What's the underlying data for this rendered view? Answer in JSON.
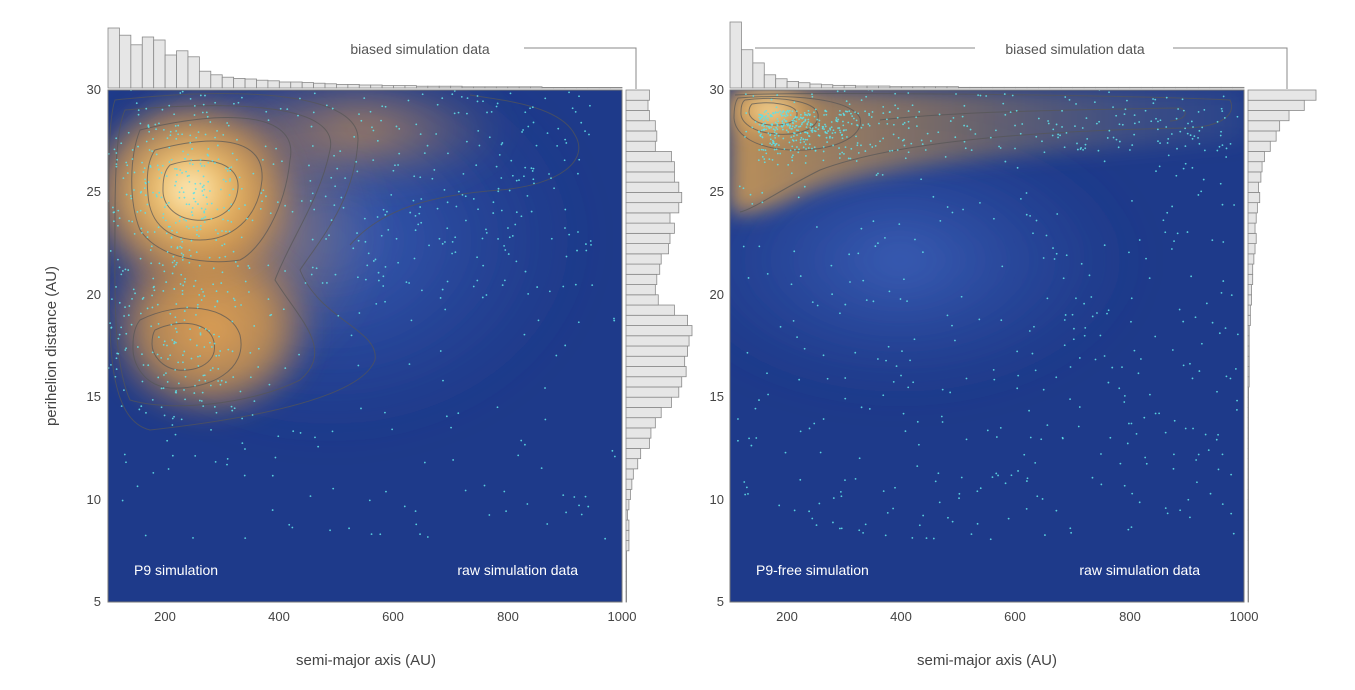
{
  "chart_data": [
    {
      "type": "heatmap",
      "panel": "left",
      "series_label": "P9 simulation",
      "data_label": "raw simulation data",
      "marginal_label": "biased simulation data",
      "xlabel": "semi-major axis (AU)",
      "ylabel": "perihelion distance (AU)",
      "xlim": [
        100,
        1000
      ],
      "ylim": [
        5,
        30
      ],
      "xticks": [
        200,
        400,
        600,
        800,
        1000
      ],
      "yticks": [
        5,
        10,
        15,
        20,
        25,
        30
      ],
      "density_peaks": [
        {
          "a": 230,
          "q": 25,
          "weight": 1.0
        },
        {
          "a": 200,
          "q": 17.5,
          "weight": 0.7
        }
      ],
      "top_histogram": {
        "bin_start": 100,
        "bin_width": 20,
        "counts": [
          100,
          88,
          72,
          85,
          80,
          55,
          62,
          52,
          28,
          22,
          18,
          16,
          15,
          13,
          12,
          10,
          10,
          9,
          8,
          7,
          6,
          6,
          5,
          5,
          4,
          4,
          4,
          3,
          3,
          3,
          3,
          2,
          2,
          2,
          2,
          2,
          2,
          2,
          1,
          1,
          1,
          1,
          1,
          1,
          1
        ]
      },
      "right_histogram": {
        "bin_start": 5,
        "bin_width": 0.5,
        "counts": [
          0,
          0,
          0,
          0,
          0,
          2,
          2,
          2,
          1,
          2,
          3,
          4,
          5,
          8,
          10,
          16,
          17,
          20,
          24,
          31,
          36,
          38,
          41,
          40,
          42,
          43,
          45,
          42,
          33,
          22,
          20,
          21,
          23,
          24,
          29,
          30,
          33,
          30,
          36,
          38,
          36,
          33,
          33,
          31,
          20,
          21,
          20,
          16,
          15,
          16
        ]
      }
    },
    {
      "type": "heatmap",
      "panel": "right",
      "series_label": "P9-free simulation",
      "data_label": "raw simulation data",
      "marginal_label": "biased simulation data",
      "xlabel": "semi-major axis (AU)",
      "ylabel": "",
      "xlim": [
        100,
        1000
      ],
      "ylim": [
        5,
        30
      ],
      "xticks": [
        200,
        400,
        600,
        800,
        1000
      ],
      "yticks": [
        5,
        10,
        15,
        20,
        25,
        30
      ],
      "density_peaks": [
        {
          "a": 150,
          "q": 29,
          "weight": 1.0
        }
      ],
      "top_histogram": {
        "bin_start": 100,
        "bin_width": 20,
        "counts": [
          100,
          58,
          38,
          20,
          14,
          10,
          8,
          6,
          5,
          4,
          4,
          3,
          3,
          3,
          2,
          2,
          2,
          2,
          2,
          2,
          1,
          1,
          1,
          1,
          1,
          1,
          1,
          1,
          1,
          1,
          1,
          1,
          1,
          1,
          1,
          1,
          1,
          1,
          1,
          1,
          1,
          1,
          1,
          1,
          1
        ]
      },
      "right_histogram": {
        "bin_start": 5,
        "bin_width": 0.5,
        "counts": [
          0,
          0,
          0,
          0,
          0,
          0,
          0,
          0,
          0,
          0,
          0,
          0,
          0,
          0,
          0,
          0,
          0,
          0,
          0,
          0,
          0,
          1,
          1,
          1,
          1,
          1,
          1,
          2,
          2,
          3,
          3,
          4,
          4,
          5,
          6,
          7,
          6,
          7,
          8,
          10,
          9,
          11,
          12,
          14,
          19,
          24,
          27,
          35,
          48,
          58
        ]
      }
    }
  ]
}
